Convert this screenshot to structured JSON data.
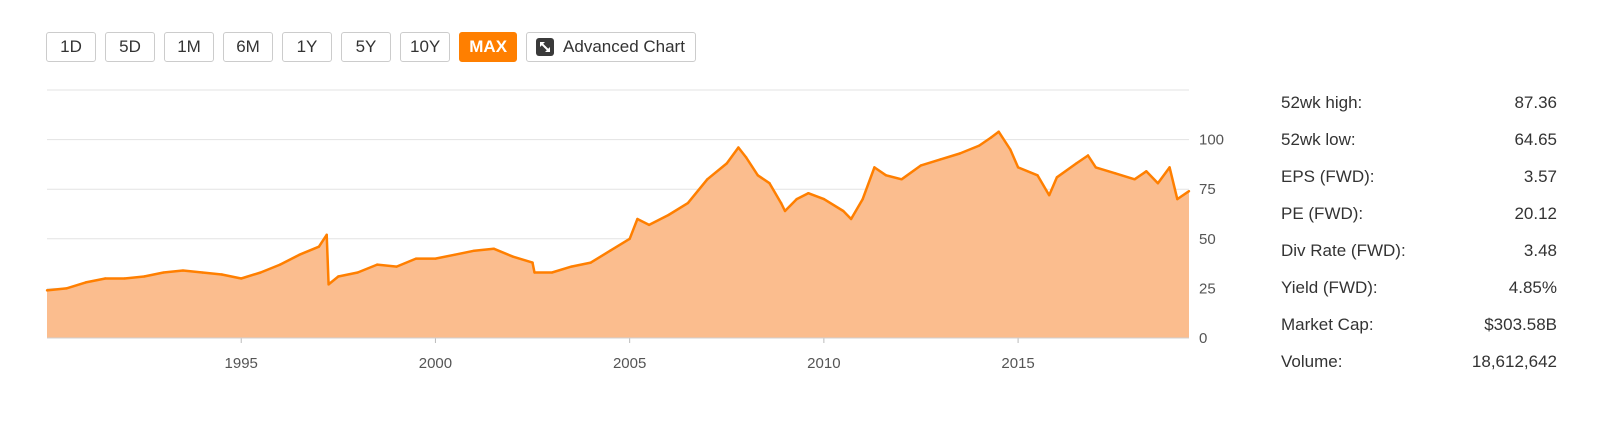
{
  "range_buttons": [
    "1D",
    "5D",
    "1M",
    "6M",
    "1Y",
    "5Y",
    "10Y",
    "MAX"
  ],
  "range_selected": "MAX",
  "advanced_chart_label": "Advanced Chart",
  "advanced_chart_icon": "expand-icon",
  "colors": {
    "accent": "#ff7f00",
    "area_fill": "#fbbd8e",
    "grid": "#e3e3e3"
  },
  "stats": [
    {
      "label": "52wk high:",
      "value": "87.36"
    },
    {
      "label": "52wk low:",
      "value": "64.65"
    },
    {
      "label": "EPS (FWD):",
      "value": "3.57"
    },
    {
      "label": "PE (FWD):",
      "value": "20.12"
    },
    {
      "label": "Div Rate (FWD):",
      "value": "3.48"
    },
    {
      "label": "Yield (FWD):",
      "value": "4.85%"
    },
    {
      "label": "Market Cap:",
      "value": "$303.58B"
    },
    {
      "label": "Volume:",
      "value": "18,612,642"
    }
  ],
  "chart_data": {
    "type": "area",
    "title": "",
    "xlabel": "",
    "ylabel": "",
    "x_ticks": [
      "1995",
      "2000",
      "2005",
      "2010",
      "2015"
    ],
    "y_ticks": [
      "0",
      "25",
      "50",
      "75",
      "100"
    ],
    "xlim": [
      1990.0,
      2019.4
    ],
    "ylim": [
      0,
      125
    ],
    "grid": true,
    "y_axis_side": "right",
    "series": [
      {
        "x": [
          1990.0,
          1990.5,
          1991.0,
          1991.5,
          1992.0,
          1992.5,
          1993.0,
          1993.5,
          1994.0,
          1994.5,
          1995.0,
          1995.5,
          1996.0,
          1996.5,
          1997.0,
          1997.2,
          1997.25,
          1997.5,
          1998.0,
          1998.5,
          1999.0,
          1999.5,
          2000.0,
          2000.5,
          2001.0,
          2001.5,
          2002.0,
          2002.5,
          2002.55,
          2003.0,
          2003.5,
          2004.0,
          2004.5,
          2005.0,
          2005.2,
          2005.5,
          2006.0,
          2006.5,
          2007.0,
          2007.5,
          2007.8,
          2008.0,
          2008.3,
          2008.6,
          2008.9,
          2009.0,
          2009.3,
          2009.6,
          2010.0,
          2010.5,
          2010.7,
          2011.0,
          2011.3,
          2011.6,
          2012.0,
          2012.5,
          2013.0,
          2013.5,
          2014.0,
          2014.3,
          2014.5,
          2014.8,
          2015.0,
          2015.5,
          2015.8,
          2016.0,
          2016.5,
          2016.8,
          2017.0,
          2017.5,
          2018.0,
          2018.3,
          2018.6,
          2018.9,
          2019.1,
          2019.4
        ],
        "values": [
          24,
          25,
          28,
          30,
          30,
          31,
          33,
          34,
          33,
          32,
          30,
          33,
          37,
          42,
          46,
          52,
          27,
          31,
          33,
          37,
          36,
          40,
          40,
          42,
          44,
          45,
          41,
          38,
          33,
          33,
          36,
          38,
          44,
          50,
          60,
          57,
          62,
          68,
          80,
          88,
          96,
          91,
          82,
          78,
          68,
          64,
          70,
          73,
          70,
          64,
          60,
          70,
          86,
          82,
          80,
          87,
          90,
          93,
          97,
          101,
          104,
          95,
          86,
          82,
          72,
          81,
          88,
          92,
          86,
          83,
          80,
          84,
          78,
          86,
          70,
          74
        ]
      }
    ]
  }
}
